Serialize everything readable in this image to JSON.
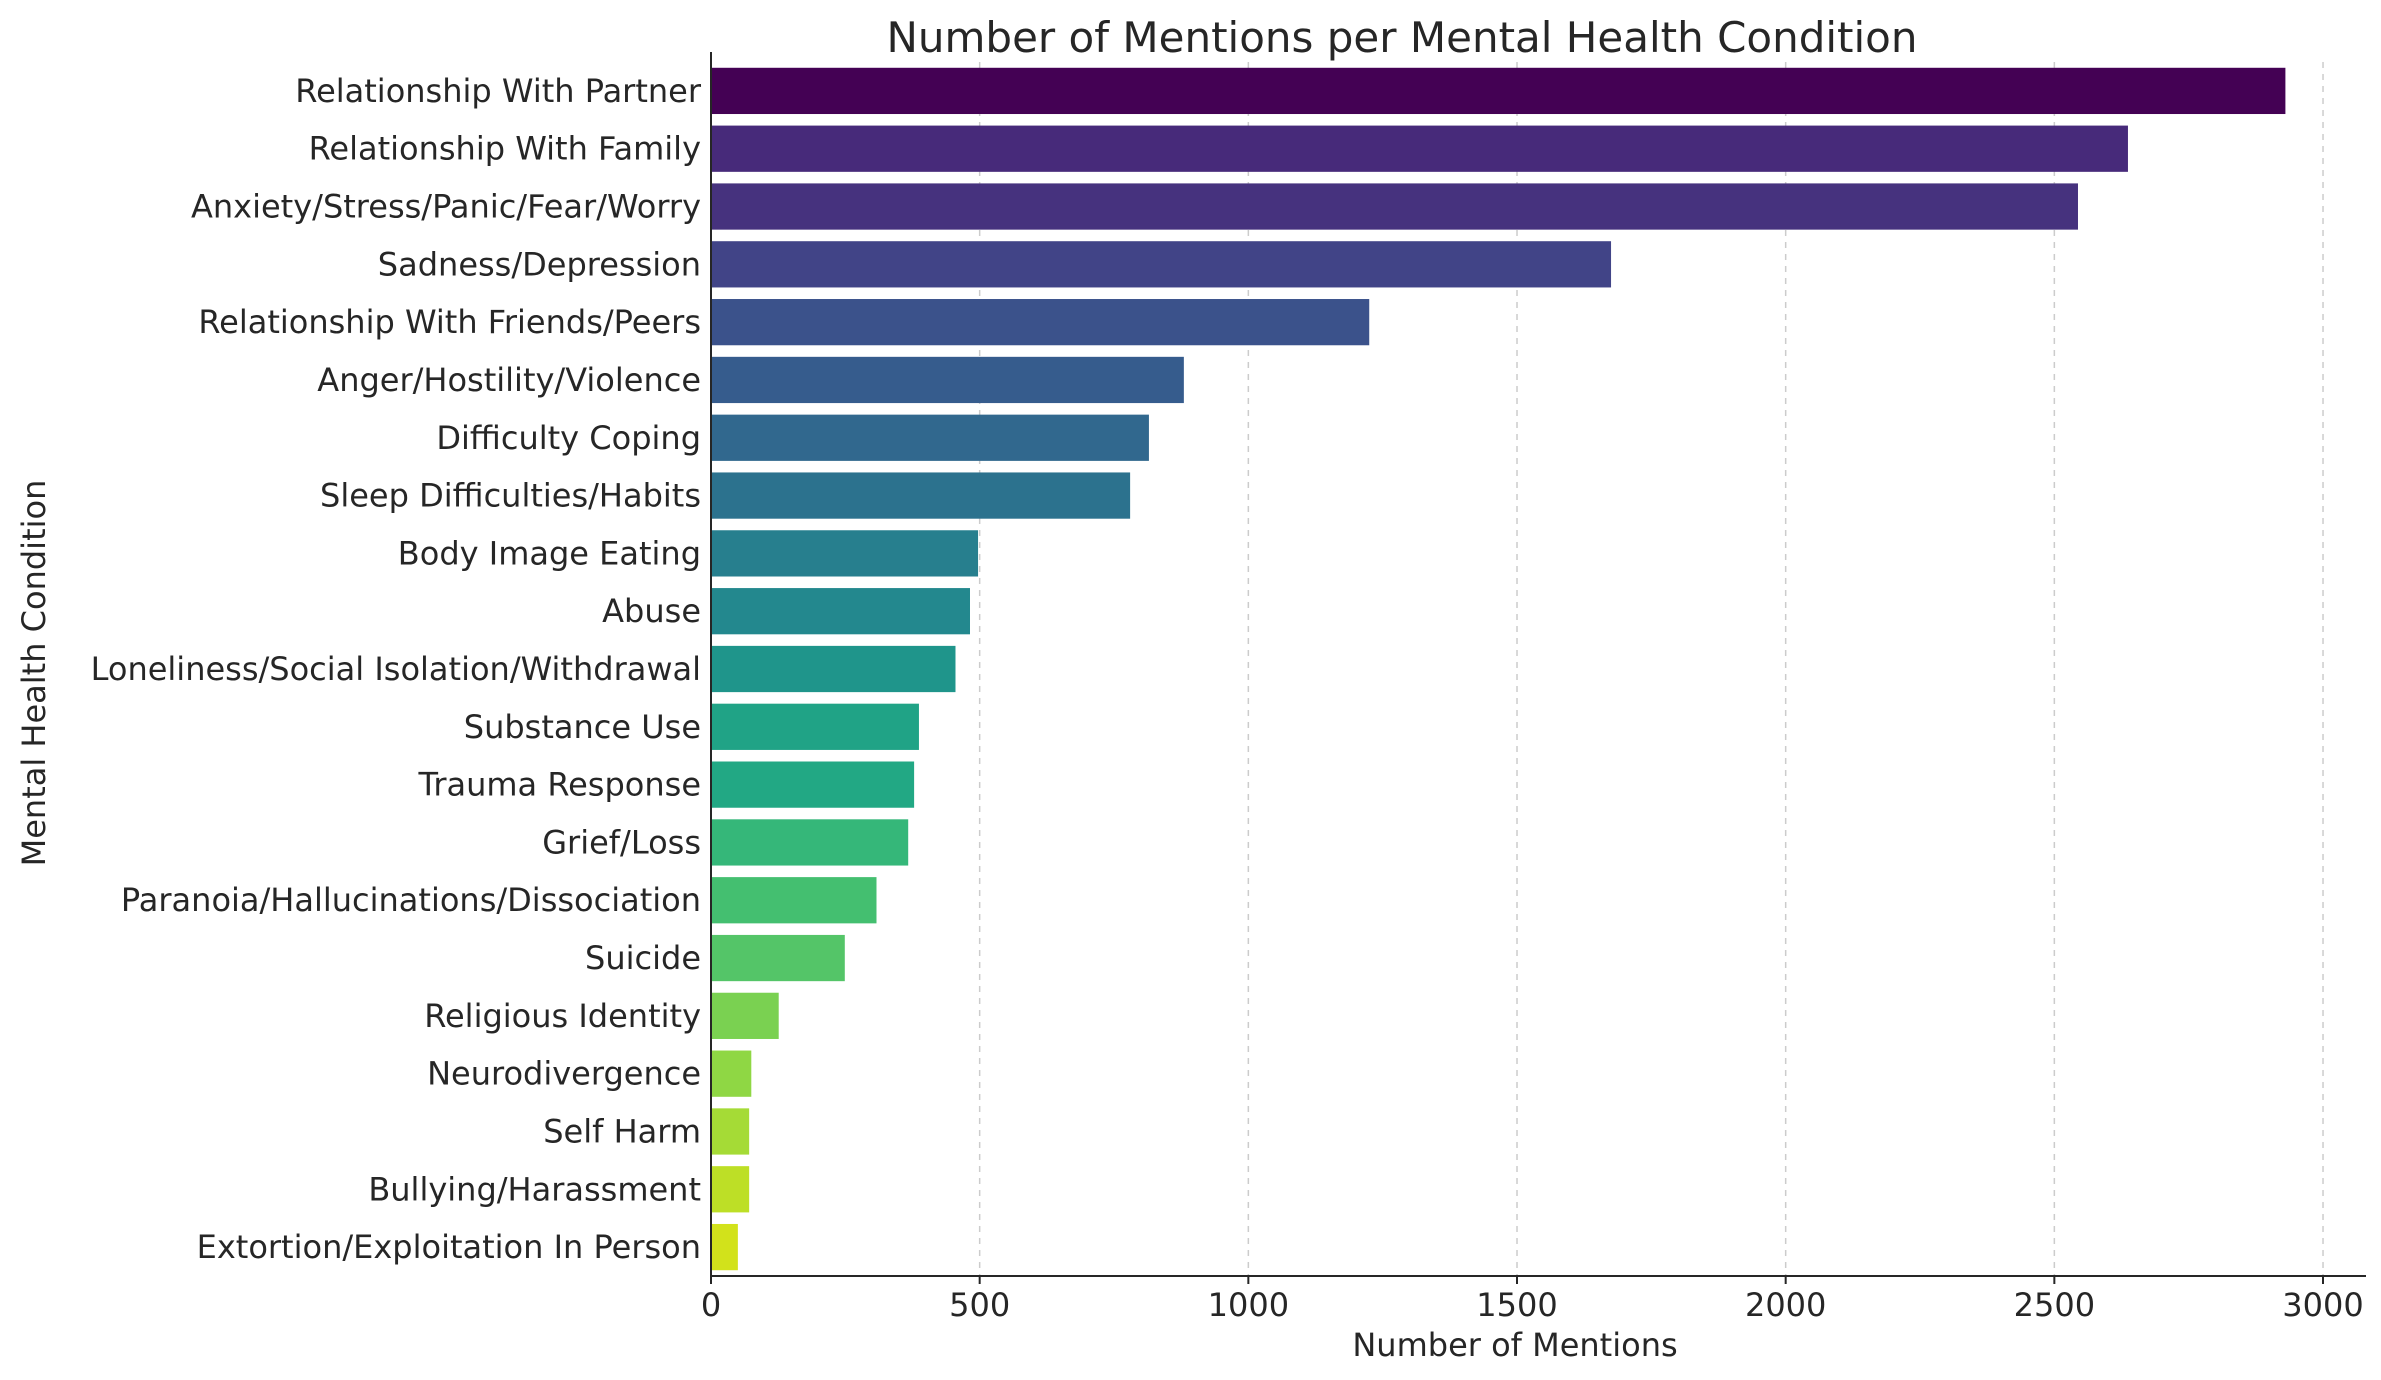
{
  "chart_data": {
    "type": "bar",
    "orientation": "horizontal",
    "title": "Number of Mentions per Mental Health Condition",
    "xlabel": "Number of Mentions",
    "ylabel": "Mental Health Condition",
    "xlim": [
      0,
      3080
    ],
    "xticks": [
      0,
      500,
      1000,
      1500,
      2000,
      2500,
      3000
    ],
    "grid": "vertical dashed",
    "legend": "none",
    "categories": [
      "Relationship With Partner",
      "Relationship With Family",
      "Anxiety/Stress/Panic/Fear/Worry",
      "Sadness/Depression",
      "Relationship With Friends/Peers",
      "Anger/Hostility/Violence",
      "Difficulty Coping",
      "Sleep Difficulties/Habits",
      "Body Image Eating",
      "Abuse",
      "Loneliness/Social Isolation/Withdrawal",
      "Substance Use",
      "Trauma Response",
      "Grief/Loss",
      "Paranoia/Hallucinations/Dissociation",
      "Suicide",
      "Religious Identity",
      "Neurodivergence",
      "Self Harm",
      "Bullying/Harassment",
      "Extortion/Exploitation In Person"
    ],
    "values": [
      2930,
      2637,
      2544,
      1675,
      1225,
      880,
      815,
      780,
      497,
      482,
      455,
      387,
      378,
      367,
      308,
      249,
      126,
      75,
      71,
      71,
      50
    ],
    "colors": [
      "#440154",
      "#472a7a",
      "#46327e",
      "#414487",
      "#3b528b",
      "#365c8d",
      "#31688e",
      "#2c728e",
      "#277f8e",
      "#23888e",
      "#1f958b",
      "#20a386",
      "#22a884",
      "#35b779",
      "#44bf70",
      "#54c568",
      "#7ad151",
      "#8fd744",
      "#a5db36",
      "#bddf26",
      "#d2e21b"
    ]
  }
}
